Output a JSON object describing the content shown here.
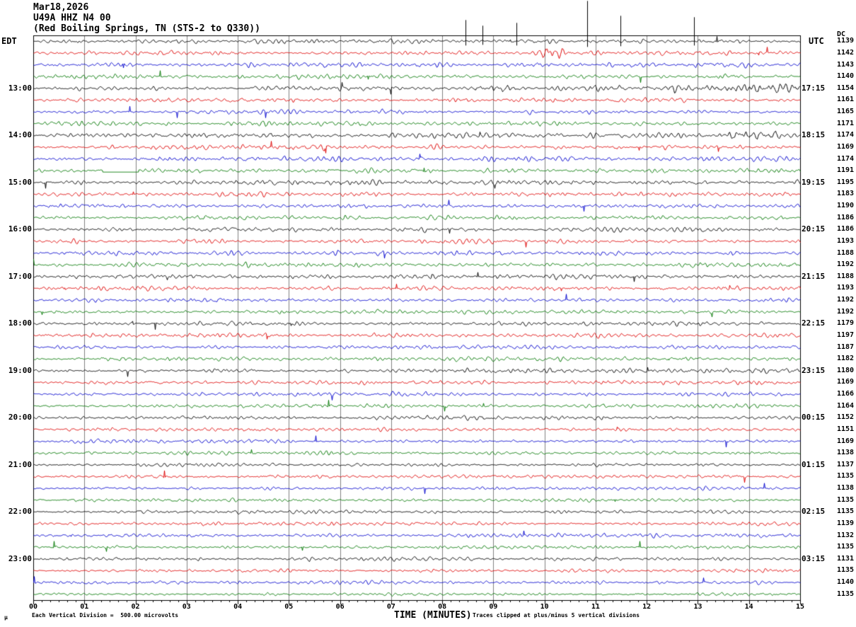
{
  "header": {
    "date": "Mar18,2026",
    "station": "U49A HHZ N4 00",
    "location": "(Red Boiling Springs, TN (STS-2 to Q330))"
  },
  "axis": {
    "left_tz": "EDT",
    "right_tz": "UTC",
    "dc_header": "DC",
    "x_title": "TIME (MINUTES)",
    "x_tick_labels": [
      "00",
      "01",
      "02",
      "03",
      "04",
      "05",
      "06",
      "07",
      "08",
      "09",
      "10",
      "11",
      "12",
      "13",
      "14",
      "15"
    ]
  },
  "footer": {
    "corner_mark": "µ",
    "scale_note": "Each Vertical Division =  500.00 microvolts",
    "clip_note": "Traces clipped at plus/minus 5 vertical divisions"
  },
  "colors": {
    "black": "#000000",
    "red": "#dd0000",
    "blue": "#0000cc",
    "green": "#007700",
    "grid": "#808080"
  },
  "chart_data": {
    "type": "line",
    "description": "Helicorder seismogram: 48 consecutive 15-minute traces (12 hours), trace colors cycle black/red/blue/green, X axis 0-15 minutes with 10-second minor ticks, right column shows per-trace DC offset counts",
    "x_range_minutes": [
      0,
      15
    ],
    "minor_tick_interval_seconds": 10,
    "trace_color_cycle": [
      "black",
      "red",
      "blue",
      "green"
    ],
    "rows": [
      {
        "edt": "",
        "utc": "",
        "dc": 1139
      },
      {
        "edt": "",
        "utc": "",
        "dc": 1142
      },
      {
        "edt": "",
        "utc": "",
        "dc": 1143
      },
      {
        "edt": "",
        "utc": "",
        "dc": 1140
      },
      {
        "edt": "13:00",
        "utc": "17:15",
        "dc": 1154
      },
      {
        "edt": "",
        "utc": "",
        "dc": 1161
      },
      {
        "edt": "",
        "utc": "",
        "dc": 1165
      },
      {
        "edt": "",
        "utc": "",
        "dc": 1171
      },
      {
        "edt": "14:00",
        "utc": "18:15",
        "dc": 1174
      },
      {
        "edt": "",
        "utc": "",
        "dc": 1169
      },
      {
        "edt": "",
        "utc": "",
        "dc": 1174
      },
      {
        "edt": "",
        "utc": "",
        "dc": 1191
      },
      {
        "edt": "15:00",
        "utc": "19:15",
        "dc": 1195
      },
      {
        "edt": "",
        "utc": "",
        "dc": 1183
      },
      {
        "edt": "",
        "utc": "",
        "dc": 1190
      },
      {
        "edt": "",
        "utc": "",
        "dc": 1186
      },
      {
        "edt": "16:00",
        "utc": "20:15",
        "dc": 1186
      },
      {
        "edt": "",
        "utc": "",
        "dc": 1193
      },
      {
        "edt": "",
        "utc": "",
        "dc": 1188
      },
      {
        "edt": "",
        "utc": "",
        "dc": 1192
      },
      {
        "edt": "17:00",
        "utc": "21:15",
        "dc": 1188
      },
      {
        "edt": "",
        "utc": "",
        "dc": 1193
      },
      {
        "edt": "",
        "utc": "",
        "dc": 1192
      },
      {
        "edt": "",
        "utc": "",
        "dc": 1192
      },
      {
        "edt": "18:00",
        "utc": "22:15",
        "dc": 1179
      },
      {
        "edt": "",
        "utc": "",
        "dc": 1197
      },
      {
        "edt": "",
        "utc": "",
        "dc": 1187
      },
      {
        "edt": "",
        "utc": "",
        "dc": 1182
      },
      {
        "edt": "19:00",
        "utc": "23:15",
        "dc": 1180
      },
      {
        "edt": "",
        "utc": "",
        "dc": 1169
      },
      {
        "edt": "",
        "utc": "",
        "dc": 1166
      },
      {
        "edt": "",
        "utc": "",
        "dc": 1164
      },
      {
        "edt": "20:00",
        "utc": "00:15",
        "dc": 1152
      },
      {
        "edt": "",
        "utc": "",
        "dc": 1151
      },
      {
        "edt": "",
        "utc": "",
        "dc": 1169
      },
      {
        "edt": "",
        "utc": "",
        "dc": 1138
      },
      {
        "edt": "21:00",
        "utc": "01:15",
        "dc": 1137
      },
      {
        "edt": "",
        "utc": "",
        "dc": 1135
      },
      {
        "edt": "",
        "utc": "",
        "dc": 1138
      },
      {
        "edt": "",
        "utc": "",
        "dc": 1135
      },
      {
        "edt": "22:00",
        "utc": "02:15",
        "dc": 1135
      },
      {
        "edt": "",
        "utc": "",
        "dc": 1139
      },
      {
        "edt": "",
        "utc": "",
        "dc": 1132
      },
      {
        "edt": "",
        "utc": "",
        "dc": 1135
      },
      {
        "edt": "23:00",
        "utc": "03:15",
        "dc": 1131
      },
      {
        "edt": "",
        "utc": "",
        "dc": 1135
      },
      {
        "edt": "",
        "utc": "",
        "dc": 1140
      },
      {
        "edt": "",
        "utc": "",
        "dc": 1135
      }
    ]
  }
}
